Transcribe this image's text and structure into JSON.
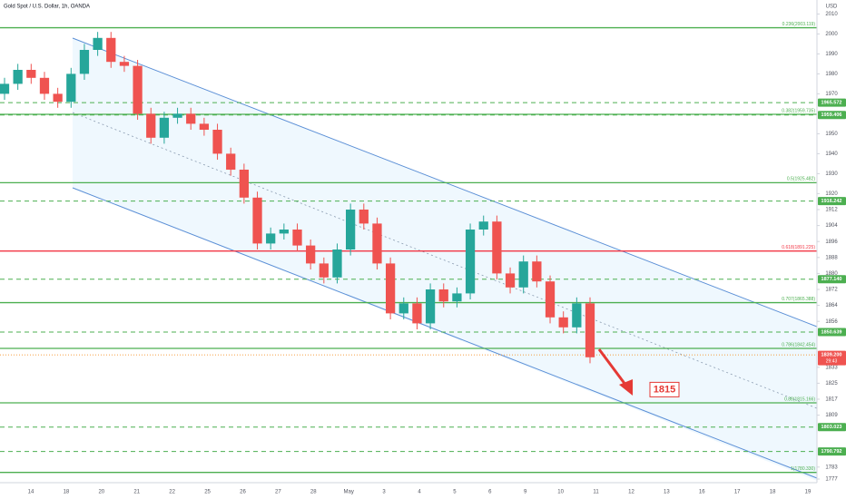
{
  "chart_data": {
    "type": "candlestick",
    "title": "Gold Spot / U.S. Dollar, 1h, OANDA",
    "currency": "USD",
    "ylim": [
      1767,
      2017
    ],
    "yticks": [
      2010,
      2000,
      1990,
      1980,
      1970,
      1950,
      1940,
      1930,
      1920,
      1912,
      1904,
      1896,
      1888,
      1880,
      1872,
      1864,
      1856,
      1833,
      1825,
      1817,
      1809,
      1783,
      1777
    ],
    "x_axis_labels": [
      "14",
      "18",
      "20",
      "21",
      "22",
      "25",
      "26",
      "27",
      "28",
      "May",
      "3",
      "4",
      "5",
      "6",
      "9",
      "10",
      "11",
      "12",
      "13",
      "16",
      "17",
      "18",
      "19"
    ],
    "up_color": "#26a69a",
    "down_color": "#ef5350",
    "open": [
      1970,
      1975,
      1982,
      1978,
      1970,
      1966,
      1980,
      1992,
      1998,
      1986,
      1984,
      1960,
      1948,
      1958,
      1960,
      1955,
      1952,
      1940,
      1932,
      1918,
      1895,
      1900,
      1902,
      1894,
      1885,
      1878,
      1892,
      1912,
      1905,
      1885,
      1860,
      1865,
      1855,
      1872,
      1866,
      1870,
      1902,
      1906,
      1880,
      1873,
      1886,
      1876,
      1858,
      1853,
      1865
    ],
    "high": [
      1978,
      1985,
      1985,
      1981,
      1973,
      1983,
      1995,
      2001,
      2001,
      1989,
      1987,
      1963,
      1961,
      1963,
      1963,
      1958,
      1955,
      1943,
      1935,
      1921,
      1903,
      1905,
      1905,
      1897,
      1888,
      1895,
      1915,
      1915,
      1908,
      1888,
      1868,
      1868,
      1875,
      1875,
      1873,
      1905,
      1909,
      1909,
      1883,
      1889,
      1889,
      1879,
      1861,
      1868,
      1868
    ],
    "low": [
      1967,
      1972,
      1975,
      1967,
      1963,
      1963,
      1977,
      1989,
      1983,
      1981,
      1957,
      1945,
      1945,
      1955,
      1952,
      1949,
      1937,
      1929,
      1915,
      1892,
      1892,
      1897,
      1891,
      1882,
      1875,
      1875,
      1889,
      1902,
      1882,
      1857,
      1857,
      1852,
      1852,
      1863,
      1863,
      1867,
      1899,
      1877,
      1870,
      1870,
      1873,
      1855,
      1850,
      1850,
      1835
    ],
    "close": [
      1975,
      1982,
      1978,
      1970,
      1966,
      1980,
      1992,
      1998,
      1986,
      1984,
      1960,
      1948,
      1958,
      1960,
      1955,
      1952,
      1940,
      1932,
      1918,
      1895,
      1900,
      1902,
      1894,
      1885,
      1878,
      1892,
      1912,
      1905,
      1885,
      1860,
      1865,
      1855,
      1872,
      1866,
      1870,
      1902,
      1906,
      1880,
      1873,
      1886,
      1876,
      1858,
      1853,
      1865,
      1838
    ],
    "fib_levels": [
      {
        "value": 2003.119,
        "label": "0.236(2003.119)",
        "color": "#4caf50"
      },
      {
        "value": 1959.735,
        "label": "0.382(1959.735)",
        "color": "#4caf50"
      },
      {
        "value": 1925.482,
        "label": "0.5(1925.482)",
        "color": "#4caf50"
      },
      {
        "value": 1891.225,
        "label": "0.618(1891.225)",
        "color": "#f23645"
      },
      {
        "value": 1865.388,
        "label": "0.707(1865.388)",
        "color": "#4caf50"
      },
      {
        "value": 1842.454,
        "label": "0.786(1842.454)",
        "color": "#4caf50"
      },
      {
        "value": 1815.166,
        "label": "0.88(1815.166)",
        "color": "#4caf50"
      },
      {
        "value": 1780.33,
        "label": "1(1780.330)",
        "color": "#4caf50"
      }
    ],
    "price_levels": [
      {
        "value": 1965.572,
        "label": "1965.572"
      },
      {
        "value": 1959.406,
        "label": "1959.406"
      },
      {
        "value": 1916.242,
        "label": "1916.242"
      },
      {
        "value": 1877.14,
        "label": "1877.140"
      },
      {
        "value": 1850.639,
        "label": "1850.639"
      },
      {
        "value": 1803.023,
        "label": "1803.023"
      },
      {
        "value": 1790.792,
        "label": "1790.792"
      }
    ],
    "level_color": "#4caf50",
    "last_price": {
      "value": 1839.2,
      "label": "1839.200",
      "countdown": "29:43",
      "color": "#f57c00"
    },
    "target": 1815
  }
}
